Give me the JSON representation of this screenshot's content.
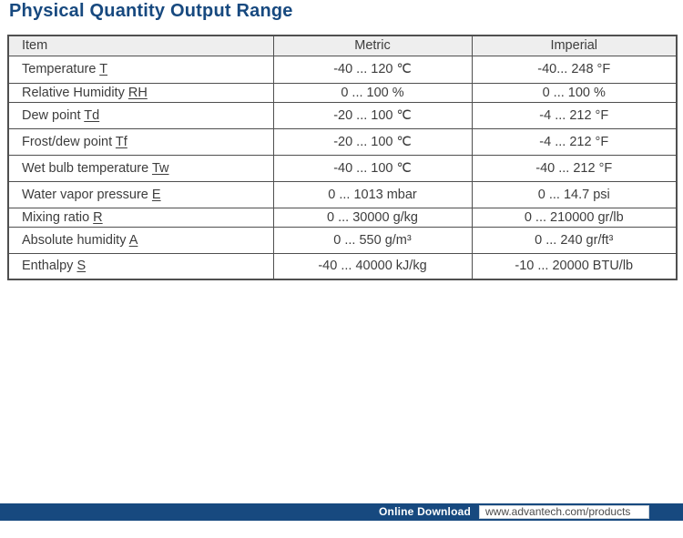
{
  "colors": {
    "accent": "#17497f",
    "header-bg": "#eeeeee",
    "border": "#4f4f4f",
    "text": "#3d3d3d"
  },
  "page": {
    "title": "Physical Quantity Output Range"
  },
  "table": {
    "columns": [
      "Item",
      "Metric",
      "Imperial"
    ],
    "rows": [
      {
        "item": "Temperature",
        "symbol": "T",
        "metric": "-40 ... 120 ℃",
        "imperial": "-40... 248 °F"
      },
      {
        "item": "Relative Humidity",
        "symbol": "RH",
        "metric": "0 ... 100 %",
        "imperial": "0 ... 100 %"
      },
      {
        "item": "Dew point",
        "symbol": "Td",
        "metric": "-20 ... 100 ℃",
        "imperial": "-4 ... 212 °F"
      },
      {
        "item": "Frost/dew point",
        "symbol": "Tf",
        "metric": "-20 ... 100 ℃",
        "imperial": "-4 ... 212 °F"
      },
      {
        "item": "Wet bulb temperature",
        "symbol": "Tw",
        "metric": "-40 ... 100 ℃",
        "imperial": "-40 ... 212 °F"
      },
      {
        "item": "Water vapor pressure",
        "symbol": "E",
        "metric": "0 ... 1013 mbar",
        "imperial": "0 ... 14.7 psi"
      },
      {
        "item": "Mixing ratio",
        "symbol": "R",
        "metric": "0 ... 30000 g/kg",
        "imperial": "0 ... 210000 gr/lb"
      },
      {
        "item": "Absolute humidity",
        "symbol": "A",
        "metric": "0 ... 550 g/m³",
        "imperial": "0 ... 240 gr/ft³"
      },
      {
        "item": "Enthalpy",
        "symbol": "S",
        "metric": "-40 ... 40000 kJ/kg",
        "imperial": "-10 ... 20000 BTU/lb"
      }
    ]
  },
  "footer": {
    "download_label": "Online Download",
    "url": "www.advantech.com/products"
  }
}
